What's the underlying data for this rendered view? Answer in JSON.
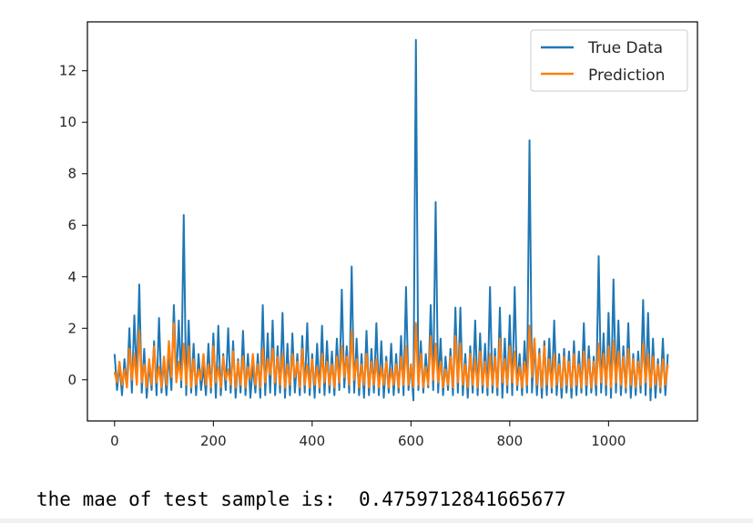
{
  "output": {
    "text": "the mae of test sample is:  0.4759712841665677"
  },
  "chart_data": {
    "type": "line",
    "title": "",
    "xlabel": "",
    "ylabel": "",
    "xlim": [
      -55,
      1180
    ],
    "ylim": [
      -1.6,
      13.9
    ],
    "xticks": [
      0,
      200,
      400,
      600,
      800,
      1000
    ],
    "yticks": [
      0,
      2,
      4,
      6,
      8,
      10,
      12
    ],
    "grid": false,
    "legend_position": "upper right",
    "series": [
      {
        "name": "True Data",
        "color": "#1f77b4",
        "x_start": 0,
        "x_step": 5,
        "values": [
          1.0,
          -0.4,
          0.6,
          -0.6,
          0.8,
          -0.3,
          2.0,
          -0.5,
          2.5,
          0.0,
          3.7,
          -0.5,
          1.2,
          -0.7,
          0.6,
          -0.4,
          1.5,
          -0.6,
          2.4,
          -0.5,
          0.8,
          -0.6,
          1.0,
          -0.4,
          2.9,
          0.0,
          2.3,
          -0.3,
          6.4,
          -0.6,
          2.3,
          -0.5,
          1.4,
          -0.6,
          1.0,
          -0.4,
          0.5,
          -0.6,
          1.4,
          -0.5,
          1.8,
          -0.7,
          2.1,
          -0.6,
          1.0,
          -0.4,
          2.0,
          -0.5,
          1.5,
          -0.7,
          0.8,
          -0.5,
          1.9,
          -0.6,
          1.0,
          -0.7,
          0.6,
          -0.5,
          1.0,
          -0.7,
          2.9,
          -0.6,
          1.8,
          -0.5,
          2.3,
          -0.6,
          1.3,
          -0.5,
          2.6,
          -0.7,
          1.4,
          -0.6,
          1.8,
          -0.5,
          1.0,
          -0.6,
          1.7,
          -0.5,
          2.2,
          -0.6,
          1.0,
          -0.7,
          1.4,
          -0.5,
          2.1,
          -0.6,
          1.5,
          -0.5,
          1.1,
          -0.6,
          1.6,
          -0.4,
          3.5,
          -0.3,
          1.3,
          -0.5,
          4.4,
          -0.5,
          1.6,
          -0.6,
          1.0,
          -0.7,
          1.9,
          -0.6,
          1.2,
          -0.5,
          2.2,
          -0.6,
          1.5,
          -0.7,
          0.9,
          -0.5,
          1.4,
          -0.6,
          1.0,
          -0.5,
          1.7,
          -0.6,
          3.6,
          -0.4,
          0.6,
          -0.8,
          13.2,
          -0.4,
          1.5,
          -0.5,
          1.0,
          -0.3,
          2.9,
          -0.4,
          6.9,
          -0.5,
          1.6,
          -0.6,
          0.9,
          -0.4,
          1.2,
          -0.6,
          2.8,
          -0.5,
          2.8,
          -0.6,
          1.0,
          -0.7,
          1.3,
          -0.5,
          2.3,
          -0.6,
          1.8,
          -0.5,
          1.4,
          -0.6,
          3.6,
          -0.5,
          1.2,
          -0.6,
          2.8,
          -0.7,
          1.6,
          -0.5,
          2.5,
          -0.6,
          3.6,
          -0.4,
          1.0,
          -0.6,
          1.5,
          -0.5,
          9.3,
          -0.5,
          1.5,
          -0.6,
          1.2,
          -0.7,
          1.5,
          -0.6,
          1.6,
          -0.5,
          2.3,
          -0.6,
          1.0,
          -0.7,
          1.2,
          -0.5,
          1.1,
          -0.7,
          1.5,
          -0.6,
          1.1,
          -0.5,
          2.2,
          -0.6,
          1.3,
          -0.5,
          0.9,
          -0.6,
          4.8,
          -0.5,
          1.8,
          -0.6,
          2.6,
          -0.7,
          3.9,
          -0.5,
          2.3,
          -0.6,
          1.3,
          -0.5,
          2.2,
          -0.7,
          1.0,
          -0.6,
          1.1,
          -0.5,
          3.1,
          -0.6,
          2.6,
          -0.8,
          1.6,
          -0.7,
          0.8,
          -0.5,
          1.6,
          -0.6,
          1.0
        ],
        "width": 2
      },
      {
        "name": "Prediction",
        "color": "#ff7f0e",
        "x_start": 0,
        "x_step": 5,
        "values": [
          0.3,
          -0.1,
          0.7,
          -0.2,
          0.4,
          -0.3,
          1.2,
          0.0,
          1.0,
          -0.2,
          1.9,
          -0.1,
          0.6,
          -0.3,
          0.8,
          -0.2,
          1.3,
          -0.1,
          0.5,
          -0.3,
          0.9,
          -0.2,
          1.5,
          0.1,
          2.2,
          -0.1,
          0.7,
          0.0,
          1.4,
          -0.2,
          1.3,
          -0.3,
          0.8,
          -0.2,
          0.4,
          0.0,
          1.0,
          -0.2,
          0.6,
          -0.3,
          1.3,
          -0.1,
          0.5,
          -0.3,
          0.9,
          0.0,
          0.4,
          -0.2,
          1.1,
          -0.3,
          0.7,
          -0.2,
          0.9,
          -0.3,
          0.5,
          0.0,
          1.0,
          -0.2,
          0.6,
          -0.3,
          1.2,
          -0.1,
          0.8,
          0.2,
          1.2,
          -0.1,
          0.9,
          -0.2,
          1.0,
          -0.3,
          0.6,
          -0.2,
          1.0,
          0.1,
          0.7,
          -0.3,
          1.2,
          -0.2,
          0.6,
          -0.3,
          0.8,
          -0.2,
          0.5,
          -0.3,
          1.0,
          -0.1,
          0.7,
          -0.2,
          0.6,
          -0.3,
          0.9,
          -0.1,
          1.3,
          0.1,
          0.9,
          -0.2,
          1.9,
          0.0,
          0.8,
          -0.3,
          0.6,
          -0.2,
          1.0,
          -0.3,
          0.7,
          -0.2,
          0.8,
          -0.3,
          0.5,
          -0.2,
          0.7,
          -0.3,
          0.4,
          -0.2,
          0.6,
          -0.3,
          0.9,
          -0.2,
          1.3,
          -0.2,
          0.6,
          -0.3,
          2.2,
          -0.2,
          1.0,
          -0.3,
          0.5,
          -0.2,
          1.7,
          0.0,
          1.4,
          -0.1,
          0.7,
          -0.3,
          0.4,
          -0.2,
          0.9,
          -0.3,
          1.7,
          -0.1,
          1.4,
          -0.2,
          0.6,
          -0.3,
          1.0,
          -0.2,
          0.8,
          -0.3,
          1.1,
          -0.2,
          0.7,
          -0.3,
          1.0,
          -0.2,
          0.9,
          -0.3,
          1.6,
          -0.1,
          0.8,
          -0.2,
          1.3,
          -0.1,
          1.1,
          -0.2,
          0.5,
          -0.3,
          0.7,
          -0.2,
          2.1,
          0.1,
          1.6,
          -0.2,
          1.0,
          -0.3,
          1.3,
          -0.2,
          0.8,
          -0.3,
          1.0,
          -0.2,
          0.6,
          -0.3,
          0.9,
          -0.2,
          0.7,
          -0.3,
          1.0,
          -0.2,
          0.6,
          -0.3,
          1.1,
          -0.2,
          0.8,
          -0.3,
          0.7,
          -0.2,
          1.4,
          -0.1,
          1.0,
          -0.2,
          1.3,
          -0.3,
          1.5,
          -0.1,
          1.1,
          -0.2,
          0.9,
          -0.3,
          1.2,
          -0.2,
          0.8,
          -0.3,
          0.7,
          -0.2,
          1.4,
          -0.1,
          1.0,
          -0.3,
          0.9,
          -0.2,
          0.6,
          -0.3,
          0.8,
          -0.2,
          0.6
        ],
        "width": 2.2
      }
    ]
  }
}
